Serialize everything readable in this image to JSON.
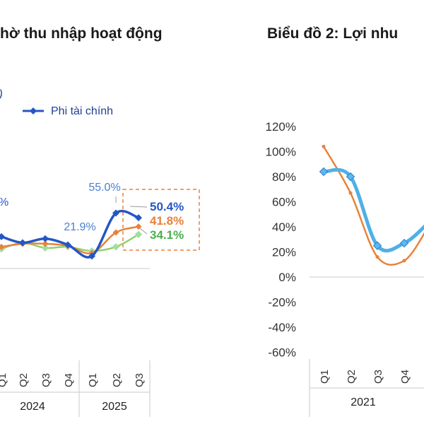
{
  "colors": {
    "blue_dark": "#2457c5",
    "blue_light": "#4fb0e8",
    "orange": "#e8823a",
    "green": "#8fd26b",
    "green_label": "#4caf50",
    "annotation_box": "#e8823a",
    "axis_line": "#c8c8c8",
    "title": "#1a1a1a"
  },
  "chart_data": [
    {
      "type": "line",
      "title": "hờ thu nhập hoạt động",
      "legend": {
        "label": "Phi tài chính",
        "position": "top"
      },
      "legend_fragment": "/)",
      "categories": [
        "Q1",
        "Q2",
        "Q3",
        "Q4",
        "Q1",
        "Q2",
        "Q3"
      ],
      "year_groups": [
        {
          "label": "2024",
          "start": 0,
          "end": 3
        },
        {
          "label": "2025",
          "start": 4,
          "end": 6
        }
      ],
      "series": [
        {
          "name": "Phi tài chính",
          "color": "#2457c5",
          "marker": "diamond",
          "values": [
            32,
            26,
            30,
            24,
            13,
            55.0,
            50.4
          ]
        },
        {
          "color": "#e8823a",
          "values": [
            22,
            25,
            25,
            23,
            16,
            36,
            41.8
          ]
        },
        {
          "color": "#8fd26b",
          "values": [
            20,
            26,
            21,
            22,
            18,
            22,
            34.1
          ]
        }
      ],
      "data_labels": [
        {
          "text": "55.0%",
          "series": 0,
          "index": 5
        },
        {
          "text": "21.9%",
          "index": 3
        },
        {
          "text": "50.4%",
          "series": 0,
          "index": 6
        },
        {
          "text": "41.8%",
          "series": 1,
          "index": 6
        },
        {
          "text": "34.1%",
          "series": 2,
          "index": 6
        }
      ],
      "left_edge_label": "%",
      "grid": false
    },
    {
      "type": "line",
      "title": "Biểu đồ 2: Lợi nhu",
      "categories": [
        "Q1",
        "Q2",
        "Q3",
        "Q4"
      ],
      "year_groups": [
        {
          "label": "2021",
          "start": 0,
          "end": 3
        }
      ],
      "y_ticks": [
        "120%",
        "100%",
        "80%",
        "60%",
        "40%",
        "20%",
        "0%",
        "-20%",
        "-40%",
        "-60%"
      ],
      "ylim": [
        -60,
        120
      ],
      "series": [
        {
          "color": "#4fb0e8",
          "marker": "diamond",
          "values": [
            84,
            80,
            25,
            27
          ]
        },
        {
          "color": "#e8823a",
          "values": [
            104,
            67,
            16,
            13
          ]
        }
      ],
      "grid": false
    }
  ]
}
